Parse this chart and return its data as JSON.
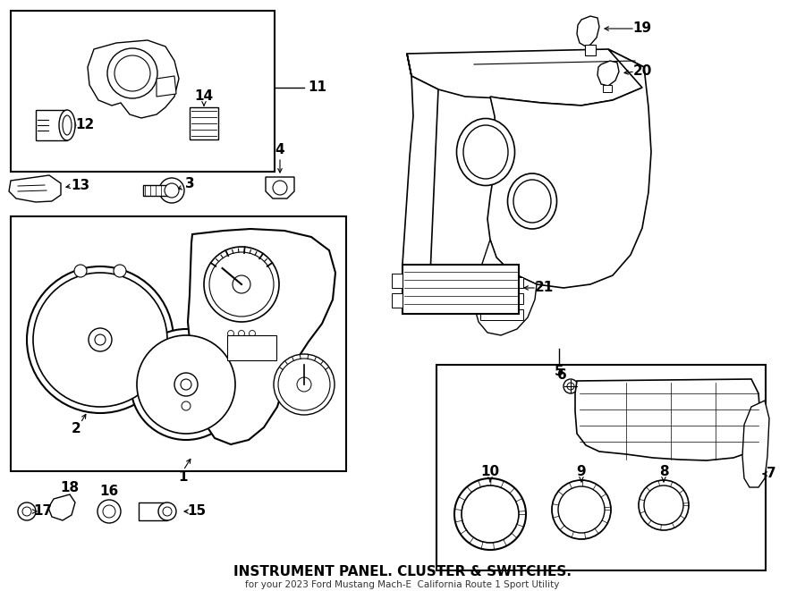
{
  "bg_color": "#ffffff",
  "line_color": "#000000",
  "title": "INSTRUMENT PANEL. CLUSTER & SWITCHES.",
  "subtitle": "for your 2023 Ford Mustang Mach-E  California Route 1 Sport Utility",
  "fig_width": 9.0,
  "fig_height": 6.61
}
